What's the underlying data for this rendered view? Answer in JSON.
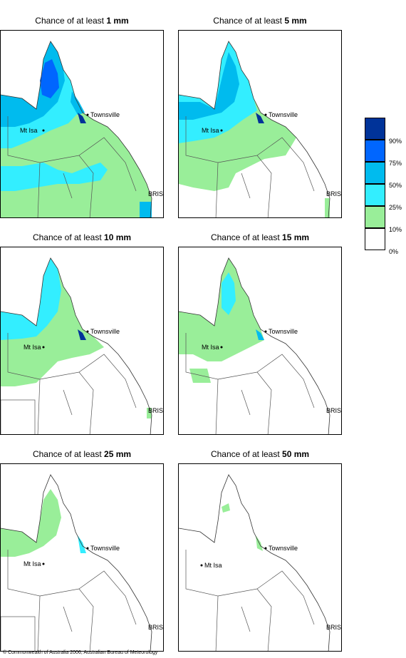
{
  "panels": [
    {
      "prefix": "Chance of at least ",
      "amount": "1 mm"
    },
    {
      "prefix": "Chance of at least ",
      "amount": "5 mm"
    },
    {
      "prefix": "Chance of at least ",
      "amount": "10 mm"
    },
    {
      "prefix": "Chance of at least ",
      "amount": "15 mm"
    },
    {
      "prefix": "Chance of at least ",
      "amount": "25 mm"
    },
    {
      "prefix": "Chance of at least ",
      "amount": "50 mm"
    }
  ],
  "places": {
    "townsville": "Townsville",
    "mount_isa": "Mt Isa",
    "brisbane": "BRIS"
  },
  "legend": {
    "ticks": [
      "90%",
      "75%",
      "50%",
      "25%",
      "10%",
      "0%"
    ],
    "colors": [
      "#003399",
      "#0066ff",
      "#00bbee",
      "#33eeff",
      "#99ee99",
      "#ffffff"
    ]
  },
  "footer": "© Commonwealth of Australia 2006, Australian Bureau of Meteorology"
}
